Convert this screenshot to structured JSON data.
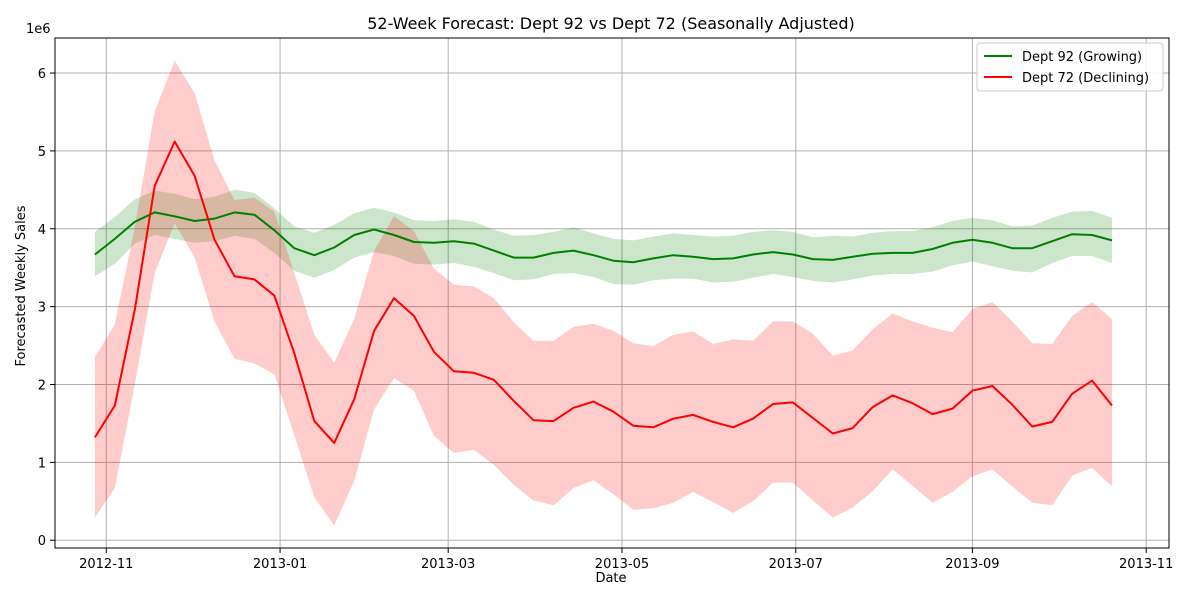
{
  "chart_data": {
    "type": "line",
    "title": "52-Week Forecast: Dept 92 vs Dept 72 (Seasonally Adjusted)",
    "xlabel": "Date",
    "ylabel": "Forecasted Weekly Sales",
    "y_offset_label": "1e6",
    "y_scale": 1000000,
    "ylim": [
      -0.1,
      6.45
    ],
    "xlim": [
      "2012-10-14",
      "2013-11-09"
    ],
    "grid": true,
    "legend_placement": "top-right",
    "x_ticks": [
      {
        "date": "2012-11-01",
        "label": "2012-11"
      },
      {
        "date": "2013-01-01",
        "label": "2013-01"
      },
      {
        "date": "2013-03-01",
        "label": "2013-03"
      },
      {
        "date": "2013-05-01",
        "label": "2013-05"
      },
      {
        "date": "2013-07-01",
        "label": "2013-07"
      },
      {
        "date": "2013-09-01",
        "label": "2013-09"
      },
      {
        "date": "2013-11-01",
        "label": "2013-11"
      }
    ],
    "y_ticks": [
      0,
      1,
      2,
      3,
      4,
      5,
      6
    ],
    "x": [
      "2012-10-28",
      "2012-11-04",
      "2012-11-11",
      "2012-11-18",
      "2012-11-25",
      "2012-12-02",
      "2012-12-09",
      "2012-12-16",
      "2012-12-23",
      "2012-12-30",
      "2013-01-06",
      "2013-01-13",
      "2013-01-20",
      "2013-01-27",
      "2013-02-03",
      "2013-02-10",
      "2013-02-17",
      "2013-02-24",
      "2013-03-03",
      "2013-03-10",
      "2013-03-17",
      "2013-03-24",
      "2013-03-31",
      "2013-04-07",
      "2013-04-14",
      "2013-04-21",
      "2013-04-28",
      "2013-05-05",
      "2013-05-12",
      "2013-05-19",
      "2013-05-26",
      "2013-06-02",
      "2013-06-09",
      "2013-06-16",
      "2013-06-23",
      "2013-06-30",
      "2013-07-07",
      "2013-07-14",
      "2013-07-21",
      "2013-07-28",
      "2013-08-04",
      "2013-08-11",
      "2013-08-18",
      "2013-08-25",
      "2013-09-01",
      "2013-09-08",
      "2013-09-15",
      "2013-09-22",
      "2013-09-29",
      "2013-10-06",
      "2013-10-13",
      "2013-10-20"
    ],
    "series": [
      {
        "name": "Dept 92 (Growing)",
        "color": "#008000",
        "band_color": "#008000",
        "values": [
          3.67,
          3.87,
          4.09,
          4.21,
          4.16,
          4.1,
          4.13,
          4.21,
          4.18,
          3.98,
          3.75,
          3.66,
          3.76,
          3.92,
          3.99,
          3.92,
          3.83,
          3.82,
          3.84,
          3.81,
          3.72,
          3.63,
          3.63,
          3.69,
          3.72,
          3.66,
          3.59,
          3.57,
          3.62,
          3.66,
          3.64,
          3.61,
          3.62,
          3.67,
          3.7,
          3.67,
          3.61,
          3.6,
          3.64,
          3.68,
          3.69,
          3.69,
          3.74,
          3.82,
          3.86,
          3.82,
          3.75,
          3.75,
          3.84,
          3.93,
          3.92,
          3.85
        ],
        "lower": [
          3.39,
          3.55,
          3.81,
          3.92,
          3.87,
          3.82,
          3.84,
          3.91,
          3.87,
          3.69,
          3.46,
          3.37,
          3.47,
          3.63,
          3.7,
          3.65,
          3.55,
          3.54,
          3.56,
          3.51,
          3.43,
          3.34,
          3.35,
          3.42,
          3.43,
          3.38,
          3.29,
          3.28,
          3.34,
          3.36,
          3.36,
          3.31,
          3.32,
          3.37,
          3.42,
          3.38,
          3.33,
          3.31,
          3.35,
          3.4,
          3.42,
          3.42,
          3.45,
          3.53,
          3.58,
          3.52,
          3.46,
          3.44,
          3.56,
          3.65,
          3.65,
          3.56
        ],
        "upper": [
          3.96,
          4.15,
          4.38,
          4.49,
          4.45,
          4.38,
          4.41,
          4.5,
          4.46,
          4.26,
          4.03,
          3.95,
          4.05,
          4.2,
          4.27,
          4.21,
          4.11,
          4.1,
          4.12,
          4.09,
          3.99,
          3.91,
          3.92,
          3.96,
          4.02,
          3.94,
          3.87,
          3.85,
          3.9,
          3.94,
          3.92,
          3.9,
          3.91,
          3.96,
          3.98,
          3.96,
          3.89,
          3.91,
          3.9,
          3.95,
          3.97,
          3.97,
          4.02,
          4.1,
          4.14,
          4.11,
          4.03,
          4.04,
          4.14,
          4.22,
          4.23,
          4.14
        ]
      },
      {
        "name": "Dept 72 (Declining)",
        "color": "#ff0000",
        "band_color": "#ff0000",
        "values": [
          1.32,
          1.73,
          2.96,
          4.55,
          5.12,
          4.68,
          3.86,
          3.39,
          3.35,
          3.14,
          2.4,
          1.53,
          1.25,
          1.81,
          2.69,
          3.11,
          2.88,
          2.42,
          2.17,
          2.15,
          2.06,
          1.79,
          1.54,
          1.53,
          1.7,
          1.78,
          1.65,
          1.47,
          1.45,
          1.56,
          1.61,
          1.52,
          1.45,
          1.56,
          1.75,
          1.77,
          1.57,
          1.37,
          1.44,
          1.71,
          1.86,
          1.76,
          1.62,
          1.69,
          1.92,
          1.98,
          1.74,
          1.46,
          1.52,
          1.88,
          2.05,
          1.73
        ],
        "lower": [
          0.29,
          0.67,
          2.0,
          3.43,
          4.07,
          3.63,
          2.81,
          2.33,
          2.27,
          2.13,
          1.35,
          0.55,
          0.19,
          0.76,
          1.68,
          2.08,
          1.92,
          1.34,
          1.12,
          1.16,
          0.97,
          0.71,
          0.51,
          0.45,
          0.67,
          0.77,
          0.59,
          0.39,
          0.41,
          0.48,
          0.62,
          0.49,
          0.35,
          0.5,
          0.74,
          0.74,
          0.51,
          0.29,
          0.42,
          0.63,
          0.91,
          0.7,
          0.48,
          0.62,
          0.82,
          0.91,
          0.69,
          0.48,
          0.45,
          0.83,
          0.93,
          0.69
        ],
        "upper": [
          2.35,
          2.77,
          4.02,
          5.51,
          6.16,
          5.74,
          4.88,
          4.37,
          4.4,
          4.22,
          3.43,
          2.64,
          2.28,
          2.84,
          3.72,
          4.16,
          3.97,
          3.49,
          3.28,
          3.26,
          3.11,
          2.8,
          2.56,
          2.56,
          2.74,
          2.78,
          2.69,
          2.53,
          2.49,
          2.64,
          2.68,
          2.52,
          2.58,
          2.56,
          2.81,
          2.81,
          2.65,
          2.37,
          2.44,
          2.71,
          2.91,
          2.81,
          2.73,
          2.67,
          2.97,
          3.06,
          2.81,
          2.53,
          2.52,
          2.88,
          3.06,
          2.84
        ]
      }
    ]
  }
}
